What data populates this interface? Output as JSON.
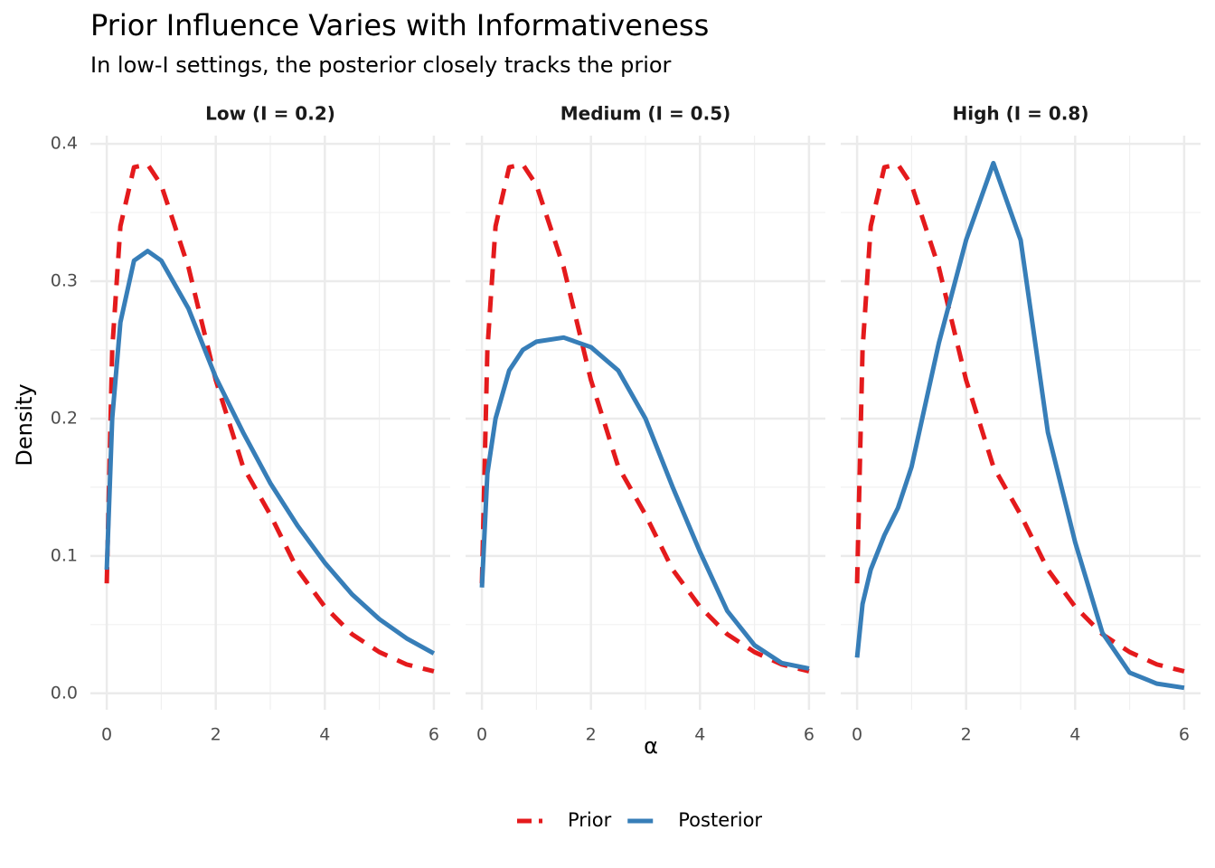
{
  "chart_data": {
    "type": "line",
    "title": "Prior Influence Varies with Informativeness",
    "subtitle": "In low-I settings, the posterior closely tracks the prior",
    "xlabel": "α",
    "ylabel": "Density",
    "xlim": [
      -0.3,
      6.3
    ],
    "ylim": [
      -0.012,
      0.406
    ],
    "xticks": [
      0,
      2,
      4,
      6
    ],
    "yticks": [
      {
        "value": 0,
        "label": "0.0"
      },
      0.1,
      0.2,
      0.3,
      0.4
    ],
    "grid": true,
    "legend": "bottom",
    "x": [
      0,
      0.1,
      0.25,
      0.5,
      0.75,
      1,
      1.5,
      2,
      2.5,
      3,
      3.5,
      4,
      4.5,
      5,
      5.5,
      6
    ],
    "facets": [
      {
        "title": "Low (I = 0.2)",
        "series": [
          {
            "name": "Prior",
            "color": "#e41a1c",
            "linestyle": "dashed",
            "values": [
              0.08,
              0.25,
              0.34,
              0.383,
              0.385,
              0.37,
              0.31,
              0.228,
              0.165,
              0.13,
              0.09,
              0.063,
              0.043,
              0.03,
              0.021,
              0.016
            ]
          },
          {
            "name": "Posterior",
            "color": "#377eb8",
            "linestyle": "solid",
            "values": [
              0.09,
              0.2,
              0.27,
              0.315,
              0.322,
              0.315,
              0.28,
              0.23,
              0.19,
              0.153,
              0.122,
              0.095,
              0.072,
              0.054,
              0.04,
              0.029
            ]
          }
        ]
      },
      {
        "title": "Medium (I = 0.5)",
        "series": [
          {
            "name": "Prior",
            "color": "#e41a1c",
            "linestyle": "dashed",
            "values": [
              0.08,
              0.25,
              0.34,
              0.383,
              0.385,
              0.37,
              0.31,
              0.228,
              0.165,
              0.13,
              0.09,
              0.063,
              0.043,
              0.03,
              0.021,
              0.016
            ]
          },
          {
            "name": "Posterior",
            "color": "#377eb8",
            "linestyle": "solid",
            "values": [
              0.077,
              0.16,
              0.2,
              0.235,
              0.25,
              0.256,
              0.259,
              0.252,
              0.235,
              0.2,
              0.15,
              0.103,
              0.06,
              0.035,
              0.022,
              0.018
            ]
          }
        ]
      },
      {
        "title": "High (I = 0.8)",
        "series": [
          {
            "name": "Prior",
            "color": "#e41a1c",
            "linestyle": "dashed",
            "values": [
              0.08,
              0.25,
              0.34,
              0.383,
              0.385,
              0.37,
              0.31,
              0.228,
              0.165,
              0.13,
              0.09,
              0.063,
              0.043,
              0.03,
              0.021,
              0.016
            ]
          },
          {
            "name": "Posterior",
            "color": "#377eb8",
            "linestyle": "solid",
            "values": [
              0.026,
              0.065,
              0.09,
              0.115,
              0.135,
              0.165,
              0.255,
              0.33,
              0.386,
              0.33,
              0.19,
              0.11,
              0.044,
              0.015,
              0.007,
              0.004
            ]
          }
        ]
      }
    ]
  }
}
